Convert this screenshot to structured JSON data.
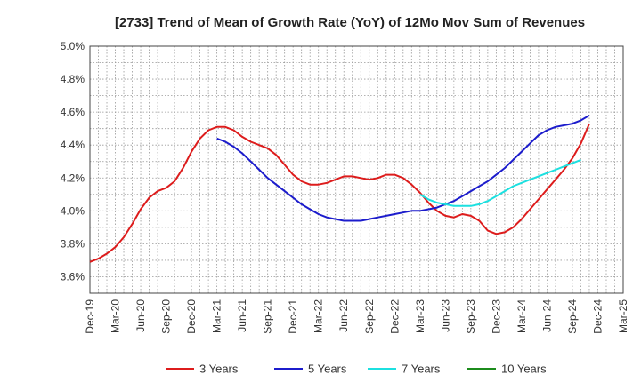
{
  "chart_data": {
    "type": "line",
    "title": "[2733]  Trend of Mean of Growth Rate (YoY) of 12Mo Mov Sum of Revenues",
    "xlabel": "",
    "ylabel": "",
    "ylim": [
      3.5,
      5.0
    ],
    "yticks": [
      3.6,
      3.8,
      4.0,
      4.2,
      4.4,
      4.6,
      4.8,
      5.0
    ],
    "ytick_labels": [
      "3.6%",
      "3.8%",
      "4.0%",
      "4.2%",
      "4.4%",
      "4.6%",
      "4.8%",
      "5.0%"
    ],
    "x_labels": [
      "Dec-19",
      "Mar-20",
      "Jun-20",
      "Sep-20",
      "Dec-20",
      "Mar-21",
      "Jun-21",
      "Sep-21",
      "Dec-21",
      "Mar-22",
      "Jun-22",
      "Sep-22",
      "Dec-22",
      "Mar-23",
      "Jun-23",
      "Sep-23",
      "Dec-23",
      "Mar-24",
      "Jun-24",
      "Sep-24",
      "Dec-24",
      "Mar-25"
    ],
    "x_months": 63,
    "grid": true,
    "legend_position": "bottom",
    "series": [
      {
        "name": "3 Years",
        "color": "#dd1c1c",
        "start_index": 0,
        "values": [
          3.69,
          3.71,
          3.74,
          3.78,
          3.84,
          3.92,
          4.01,
          4.08,
          4.12,
          4.14,
          4.18,
          4.26,
          4.36,
          4.44,
          4.49,
          4.51,
          4.51,
          4.49,
          4.45,
          4.42,
          4.4,
          4.38,
          4.34,
          4.28,
          4.22,
          4.18,
          4.16,
          4.16,
          4.17,
          4.19,
          4.21,
          4.21,
          4.2,
          4.19,
          4.2,
          4.22,
          4.22,
          4.2,
          4.16,
          4.11,
          4.05,
          4.0,
          3.97,
          3.96,
          3.98,
          3.97,
          3.94,
          3.88,
          3.86,
          3.87,
          3.9,
          3.95,
          4.01,
          4.07,
          4.13,
          4.19,
          4.25,
          4.32,
          4.41,
          4.53
        ]
      },
      {
        "name": "5 Years",
        "color": "#1c1ccc",
        "start_index": 15,
        "values": [
          4.44,
          4.42,
          4.39,
          4.35,
          4.3,
          4.25,
          4.2,
          4.16,
          4.12,
          4.08,
          4.04,
          4.01,
          3.98,
          3.96,
          3.95,
          3.94,
          3.94,
          3.94,
          3.95,
          3.96,
          3.97,
          3.98,
          3.99,
          4.0,
          4.0,
          4.01,
          4.02,
          4.04,
          4.06,
          4.09,
          4.12,
          4.15,
          4.18,
          4.22,
          4.26,
          4.31,
          4.36,
          4.41,
          4.46,
          4.49,
          4.51,
          4.52,
          4.53,
          4.55,
          4.58
        ]
      },
      {
        "name": "7 Years",
        "color": "#1ce0e0",
        "start_index": 39,
        "values": [
          4.1,
          4.07,
          4.05,
          4.04,
          4.03,
          4.03,
          4.03,
          4.04,
          4.06,
          4.09,
          4.12,
          4.15,
          4.17,
          4.19,
          4.21,
          4.23,
          4.25,
          4.27,
          4.29,
          4.31
        ]
      },
      {
        "name": "10 Years",
        "color": "#1c8c1c",
        "start_index": 0,
        "values": []
      }
    ]
  }
}
